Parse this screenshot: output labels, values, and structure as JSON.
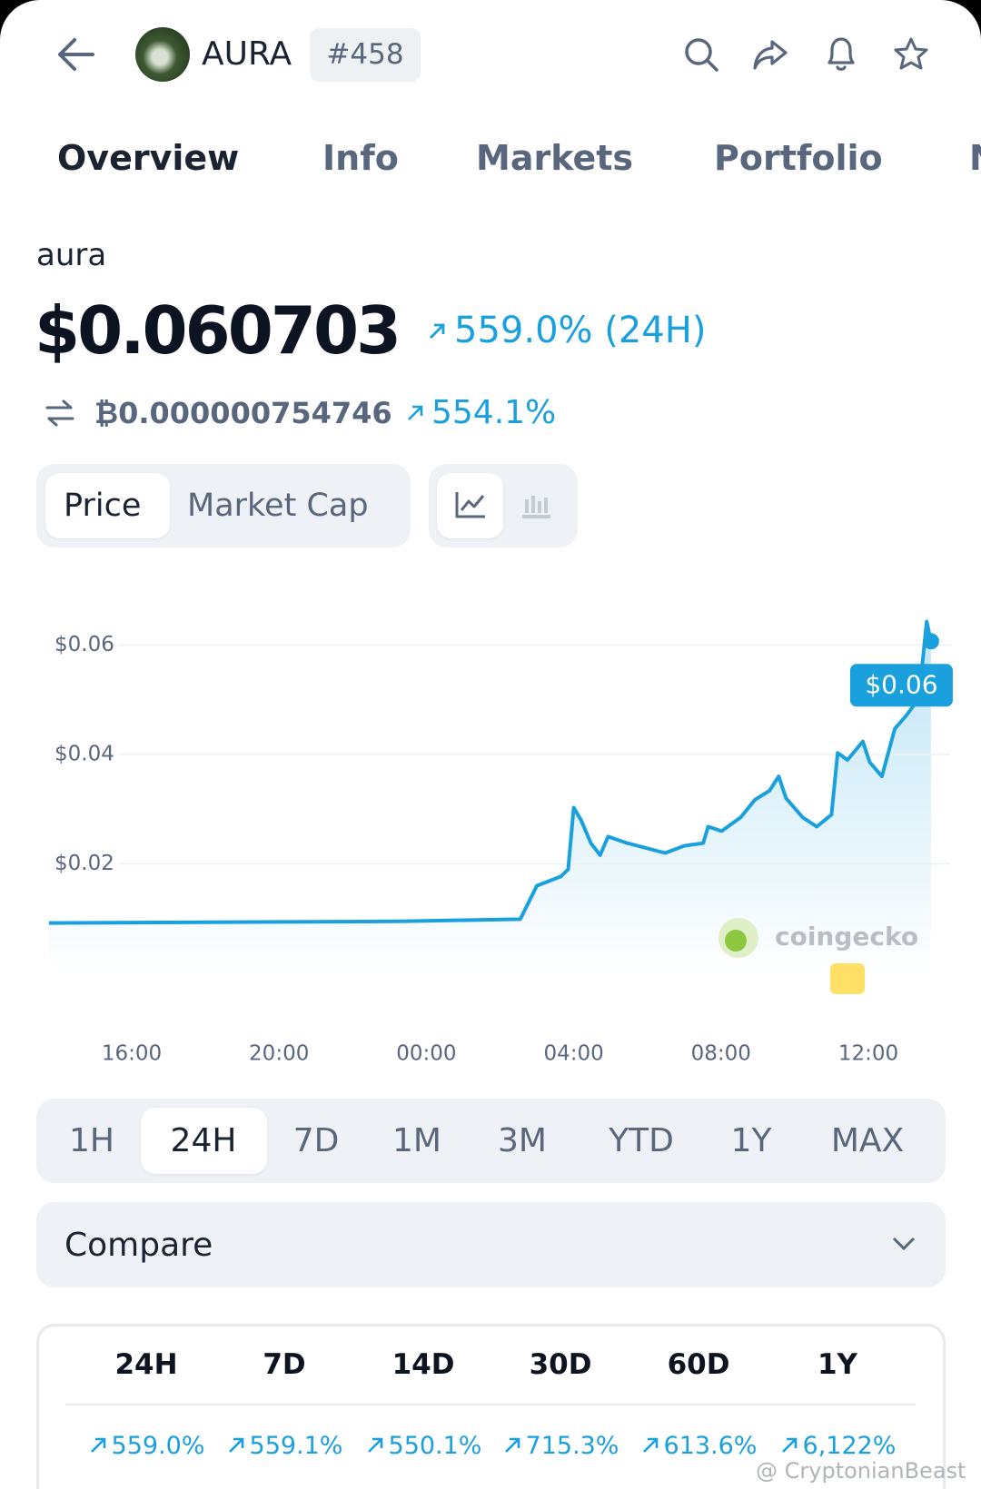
{
  "header": {
    "ticker": "AURA",
    "rank": "#458"
  },
  "tabs": [
    "Overview",
    "Info",
    "Markets",
    "Portfolio",
    "N"
  ],
  "coin": {
    "name": "aura",
    "price": "$0.060703",
    "change_24h": "559.0% (24H)",
    "btc_price": "₿0.000000754746",
    "btc_change": "554.1%"
  },
  "chart_toggle": [
    "Price",
    "Market Cap"
  ],
  "chart_data": {
    "type": "line",
    "color": "#1aa0dd",
    "grid": true,
    "x": [
      "13:45",
      "20:10",
      "23:15",
      "02:33",
      "03:00",
      "03:39",
      "03:51",
      "04:00",
      "04:12",
      "04:28",
      "04:43",
      "04:56",
      "05:27",
      "06:29",
      "07:00",
      "07:31",
      "07:39",
      "08:01",
      "08:32",
      "08:55",
      "09:19",
      "09:34",
      "09:46",
      "10:13",
      "10:36",
      "11:00",
      "11:10",
      "11:26",
      "11:51",
      "12:02",
      "12:22",
      "12:43",
      "13:03",
      "13:14",
      "13:26",
      "13:35",
      "13:42"
    ],
    "values": [
      0.0092,
      0.0094,
      0.0095,
      0.0099,
      0.016,
      0.0177,
      0.019,
      0.0303,
      0.028,
      0.0238,
      0.0216,
      0.025,
      0.0238,
      0.022,
      0.0233,
      0.0238,
      0.0268,
      0.026,
      0.0285,
      0.0317,
      0.0334,
      0.036,
      0.032,
      0.0285,
      0.0268,
      0.029,
      0.0403,
      0.039,
      0.0424,
      0.0386,
      0.036,
      0.0447,
      0.0473,
      0.049,
      0.0543,
      0.0643,
      0.0607
    ],
    "ylim": [
      0,
      0.065
    ],
    "yticks": [
      {
        "value": 0.02,
        "label": "$0.02"
      },
      {
        "value": 0.04,
        "label": "$0.04"
      },
      {
        "value": 0.06,
        "label": "$0.06"
      }
    ],
    "xticks": [
      "16:00",
      "20:00",
      "00:00",
      "04:00",
      "08:00",
      "12:00"
    ],
    "current_label": "$0.06"
  },
  "ranges": [
    "1H",
    "24H",
    "7D",
    "1M",
    "3M",
    "YTD",
    "1Y",
    "MAX"
  ],
  "selected_range": "24H",
  "compare": "Compare",
  "performance": {
    "periods": [
      "24H",
      "7D",
      "14D",
      "30D",
      "60D",
      "1Y"
    ],
    "changes": [
      "559.0%",
      "559.1%",
      "550.1%",
      "715.3%",
      "613.6%",
      "6,122%"
    ]
  },
  "watermarks": {
    "chart": "coingecko",
    "image": "@ CryptonianBeast"
  }
}
